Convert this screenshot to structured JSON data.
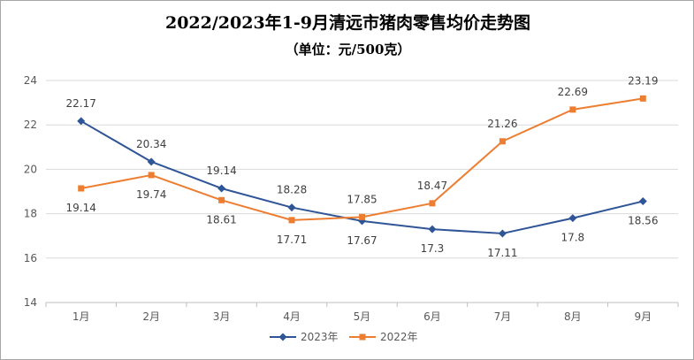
{
  "chart_data": {
    "type": "line",
    "title": "2022/2023年1-9月清远市猪肉零售均价走势图",
    "subtitle": "（单位：元/500克）",
    "categories": [
      "1月",
      "2月",
      "3月",
      "4月",
      "5月",
      "6月",
      "7月",
      "8月",
      "9月"
    ],
    "ylim": [
      14,
      24
    ],
    "yticks": [
      "14",
      "16",
      "18",
      "20",
      "22",
      "24"
    ],
    "grid": true,
    "legend_position": "bottom",
    "series": [
      {
        "name": "2023年",
        "color": "#2f5597",
        "marker": "diamond",
        "values": [
          22.17,
          20.34,
          19.14,
          18.28,
          17.67,
          17.3,
          17.11,
          17.8,
          18.56
        ],
        "labels": [
          "22.17",
          "20.34",
          "19.14",
          "18.28",
          "17.67",
          "17.3",
          "17.11",
          "17.8",
          "18.56"
        ]
      },
      {
        "name": "2022年",
        "color": "#ed7d31",
        "marker": "square",
        "values": [
          19.14,
          19.74,
          18.61,
          17.71,
          17.85,
          18.47,
          21.26,
          22.69,
          23.19
        ],
        "labels": [
          "19.14",
          "19.74",
          "18.61",
          "17.71",
          "17.85",
          "18.47",
          "21.26",
          "22.69",
          "23.19"
        ]
      }
    ]
  }
}
